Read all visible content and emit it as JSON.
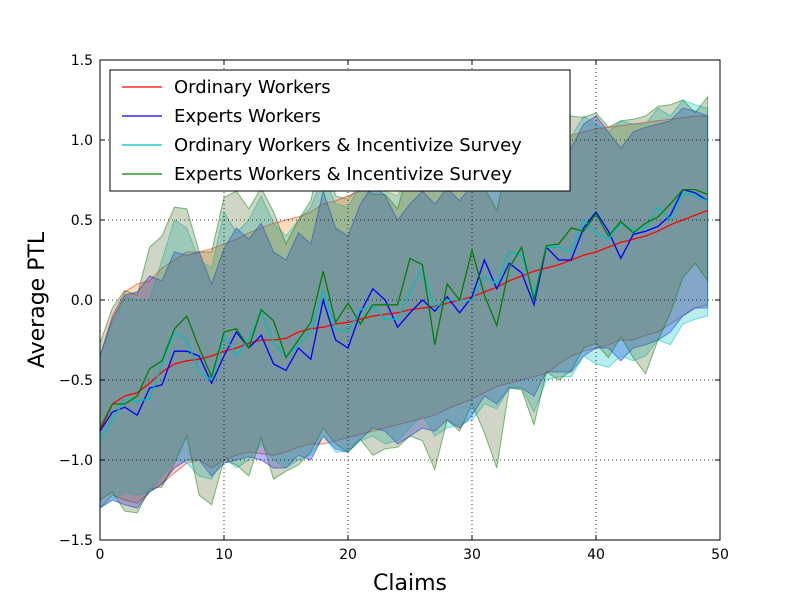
{
  "chart_data": {
    "type": "line",
    "title": "",
    "xlabel": "Claims",
    "ylabel": "Average PTL",
    "xlim": [
      0,
      50
    ],
    "ylim": [
      -1.5,
      1.5
    ],
    "grid": true,
    "legend_placement": "top-left",
    "x_ticks": [
      0,
      10,
      20,
      30,
      40,
      50
    ],
    "x_tick_labels": [
      "0",
      "10",
      "20",
      "30",
      "40",
      "50"
    ],
    "y_ticks": [
      -1.5,
      -1.0,
      -0.5,
      0.0,
      0.5,
      1.0,
      1.5
    ],
    "y_tick_labels": [
      "−1.5",
      "−1.0",
      "−0.5",
      "0.0",
      "0.5",
      "1.0",
      "1.5"
    ],
    "x": [
      0,
      1,
      2,
      3,
      4,
      5,
      6,
      7,
      8,
      9,
      10,
      11,
      12,
      13,
      14,
      15,
      16,
      17,
      18,
      19,
      20,
      21,
      22,
      23,
      24,
      25,
      26,
      27,
      28,
      29,
      30,
      31,
      32,
      33,
      34,
      35,
      36,
      37,
      38,
      39,
      40,
      41,
      42,
      43,
      44,
      45,
      46,
      47,
      48,
      49
    ],
    "series": [
      {
        "name": "Ordinary Workers",
        "color": "#ff0000",
        "band_color": "#ff7f0e",
        "values": [
          -0.82,
          -0.65,
          -0.6,
          -0.58,
          -0.52,
          -0.45,
          -0.4,
          -0.38,
          -0.37,
          -0.35,
          -0.32,
          -0.3,
          -0.27,
          -0.25,
          -0.25,
          -0.24,
          -0.2,
          -0.18,
          -0.17,
          -0.15,
          -0.14,
          -0.12,
          -0.1,
          -0.09,
          -0.08,
          -0.06,
          -0.05,
          -0.04,
          -0.02,
          0.0,
          0.02,
          0.05,
          0.08,
          0.12,
          0.15,
          0.18,
          0.2,
          0.22,
          0.25,
          0.28,
          0.3,
          0.33,
          0.36,
          0.38,
          0.4,
          0.43,
          0.47,
          0.5,
          0.53,
          0.56
        ],
        "lower": [
          -1.3,
          -1.22,
          -1.25,
          -1.27,
          -1.2,
          -1.15,
          -1.08,
          -1.02,
          -1.0,
          -1.05,
          -1.0,
          -0.97,
          -0.95,
          -0.96,
          -0.97,
          -0.95,
          -0.92,
          -0.9,
          -0.9,
          -0.88,
          -0.86,
          -0.84,
          -0.82,
          -0.8,
          -0.78,
          -0.76,
          -0.74,
          -0.72,
          -0.68,
          -0.65,
          -0.62,
          -0.58,
          -0.54,
          -0.52,
          -0.5,
          -0.48,
          -0.46,
          -0.4,
          -0.35,
          -0.32,
          -0.3,
          -0.28,
          -0.25,
          -0.25,
          -0.22,
          -0.2,
          -0.15,
          -0.1,
          -0.05,
          -0.03
        ],
        "upper": [
          -0.35,
          -0.1,
          0.05,
          0.1,
          0.12,
          0.2,
          0.25,
          0.3,
          0.3,
          0.32,
          0.35,
          0.38,
          0.42,
          0.45,
          0.48,
          0.5,
          0.52,
          0.55,
          0.6,
          0.62,
          0.65,
          0.68,
          0.7,
          0.72,
          0.74,
          0.76,
          0.8,
          0.82,
          0.84,
          0.86,
          0.88,
          0.9,
          0.92,
          0.95,
          0.97,
          0.99,
          1.0,
          1.01,
          1.03,
          1.05,
          1.07,
          1.08,
          1.09,
          1.1,
          1.11,
          1.12,
          1.13,
          1.14,
          1.15,
          1.15
        ]
      },
      {
        "name": "Experts Workers",
        "color": "#0000ff",
        "values": [
          -0.82,
          -0.7,
          -0.67,
          -0.72,
          -0.55,
          -0.53,
          -0.32,
          -0.32,
          -0.35,
          -0.52,
          -0.35,
          -0.2,
          -0.3,
          -0.22,
          -0.4,
          -0.44,
          -0.3,
          -0.37,
          0.0,
          -0.25,
          -0.3,
          -0.08,
          0.07,
          0.0,
          -0.17,
          -0.08,
          0.0,
          -0.07,
          0.02,
          -0.08,
          0.02,
          0.25,
          0.07,
          0.23,
          0.17,
          -0.03,
          0.33,
          0.25,
          0.25,
          0.45,
          0.55,
          0.43,
          0.26,
          0.41,
          0.43,
          0.46,
          0.53,
          0.69,
          0.67,
          0.62
        ],
        "lower": [
          -1.3,
          -1.25,
          -1.28,
          -1.3,
          -1.2,
          -1.15,
          -1.05,
          -1.0,
          -1.0,
          -1.1,
          -1.02,
          -1.0,
          -0.98,
          -1.0,
          -1.05,
          -1.05,
          -0.97,
          -1.0,
          -0.85,
          -0.93,
          -0.95,
          -0.87,
          -0.8,
          -0.82,
          -0.9,
          -0.85,
          -0.8,
          -0.82,
          -0.75,
          -0.8,
          -0.72,
          -0.6,
          -0.65,
          -0.55,
          -0.55,
          -0.6,
          -0.45,
          -0.45,
          -0.45,
          -0.35,
          -0.3,
          -0.3,
          -0.38,
          -0.3,
          -0.28,
          -0.25,
          -0.2,
          -0.1,
          -0.05,
          -0.05
        ],
        "upper": [
          -0.35,
          -0.12,
          0.03,
          0.05,
          0.15,
          0.12,
          0.3,
          0.28,
          0.3,
          0.1,
          0.32,
          0.45,
          0.38,
          0.48,
          0.3,
          0.25,
          0.42,
          0.35,
          0.68,
          0.45,
          0.4,
          0.6,
          0.72,
          0.65,
          0.5,
          0.6,
          0.68,
          0.6,
          0.7,
          0.62,
          0.72,
          0.92,
          0.78,
          0.95,
          0.88,
          0.7,
          1.02,
          0.95,
          0.95,
          1.1,
          1.15,
          1.05,
          0.95,
          1.05,
          1.08,
          1.1,
          1.12,
          1.2,
          1.18,
          1.15
        ]
      },
      {
        "name": "Ordinary Workers & Incentivize Survey",
        "color": "#00bfbf",
        "values": [
          -0.88,
          -0.75,
          -0.62,
          -0.63,
          -0.62,
          -0.4,
          -0.2,
          -0.25,
          -0.45,
          -0.5,
          -0.22,
          -0.35,
          -0.25,
          -0.07,
          -0.27,
          -0.35,
          -0.28,
          -0.2,
          0.06,
          -0.18,
          -0.2,
          -0.06,
          -0.04,
          -0.12,
          -0.12,
          0.05,
          0.2,
          -0.05,
          0.0,
          0.0,
          0.0,
          0.15,
          0.1,
          0.3,
          0.28,
          0.03,
          0.33,
          0.33,
          0.3,
          0.5,
          0.42,
          0.38,
          0.48,
          0.44,
          0.45,
          0.58,
          0.5,
          0.67,
          0.65,
          0.62
        ],
        "lower": [
          -1.3,
          -1.25,
          -1.2,
          -1.22,
          -1.2,
          -1.1,
          -1.0,
          -1.02,
          -1.1,
          -1.12,
          -0.98,
          -1.05,
          -1.0,
          -0.9,
          -1.0,
          -1.05,
          -1.0,
          -0.97,
          -0.85,
          -0.95,
          -0.95,
          -0.88,
          -0.85,
          -0.9,
          -0.88,
          -0.8,
          -0.72,
          -0.85,
          -0.8,
          -0.78,
          -0.75,
          -0.65,
          -0.68,
          -0.55,
          -0.55,
          -0.7,
          -0.5,
          -0.48,
          -0.48,
          -0.35,
          -0.4,
          -0.42,
          -0.35,
          -0.38,
          -0.35,
          -0.25,
          -0.28,
          -0.15,
          -0.12,
          -0.1
        ],
        "upper": [
          -0.35,
          -0.15,
          0.02,
          0.0,
          0.0,
          0.25,
          0.5,
          0.45,
          0.25,
          0.2,
          0.55,
          0.42,
          0.5,
          0.65,
          0.48,
          0.4,
          0.5,
          0.58,
          0.78,
          0.6,
          0.58,
          0.72,
          0.75,
          0.68,
          0.65,
          0.82,
          0.95,
          0.75,
          0.8,
          0.8,
          0.8,
          0.92,
          0.88,
          1.05,
          1.02,
          0.8,
          1.05,
          1.05,
          1.02,
          1.15,
          1.1,
          1.05,
          1.12,
          1.1,
          1.1,
          1.2,
          1.15,
          1.25,
          1.22,
          1.2
        ]
      },
      {
        "name": "Experts Workers & Incentivize Survey",
        "color": "#008000",
        "band_color": "#556b2f",
        "values": [
          -0.8,
          -0.65,
          -0.65,
          -0.6,
          -0.43,
          -0.38,
          -0.18,
          -0.1,
          -0.3,
          -0.48,
          -0.2,
          -0.18,
          -0.3,
          -0.06,
          -0.13,
          -0.36,
          -0.25,
          -0.14,
          0.18,
          -0.14,
          -0.02,
          -0.15,
          -0.03,
          -0.03,
          -0.03,
          0.26,
          0.22,
          -0.28,
          0.1,
          0.0,
          0.31,
          0.03,
          -0.16,
          0.2,
          0.33,
          0.0,
          0.34,
          0.35,
          0.45,
          0.43,
          0.54,
          0.4,
          0.49,
          0.42,
          0.48,
          0.52,
          0.6,
          0.69,
          0.69,
          0.66
        ],
        "lower": [
          -1.25,
          -1.2,
          -1.32,
          -1.33,
          -1.18,
          -1.17,
          -1.02,
          -0.85,
          -1.22,
          -1.28,
          -1.0,
          -1.03,
          -1.1,
          -0.86,
          -1.12,
          -1.07,
          -1.03,
          -0.95,
          -0.8,
          -0.9,
          -0.95,
          -0.87,
          -0.97,
          -0.93,
          -0.92,
          -0.85,
          -0.88,
          -1.06,
          -0.75,
          -0.82,
          -0.65,
          -0.83,
          -1.05,
          -0.55,
          -0.56,
          -0.78,
          -0.45,
          -0.5,
          -0.44,
          -0.3,
          -0.27,
          -0.36,
          -0.23,
          -0.36,
          -0.46,
          -0.25,
          -0.08,
          0.14,
          0.23,
          0.12
        ],
        "upper": [
          -0.27,
          -0.05,
          0.06,
          0.03,
          0.33,
          0.4,
          0.58,
          0.57,
          0.3,
          0.3,
          0.64,
          0.68,
          0.57,
          0.7,
          0.55,
          0.35,
          0.5,
          0.62,
          0.97,
          0.65,
          0.63,
          0.72,
          0.66,
          0.66,
          0.57,
          0.85,
          0.95,
          0.68,
          0.8,
          0.73,
          0.92,
          0.7,
          0.56,
          0.9,
          0.98,
          0.75,
          1.05,
          1.03,
          1.15,
          1.14,
          1.17,
          1.08,
          1.12,
          1.13,
          1.15,
          1.21,
          1.22,
          1.25,
          1.17,
          1.27
        ]
      }
    ]
  }
}
